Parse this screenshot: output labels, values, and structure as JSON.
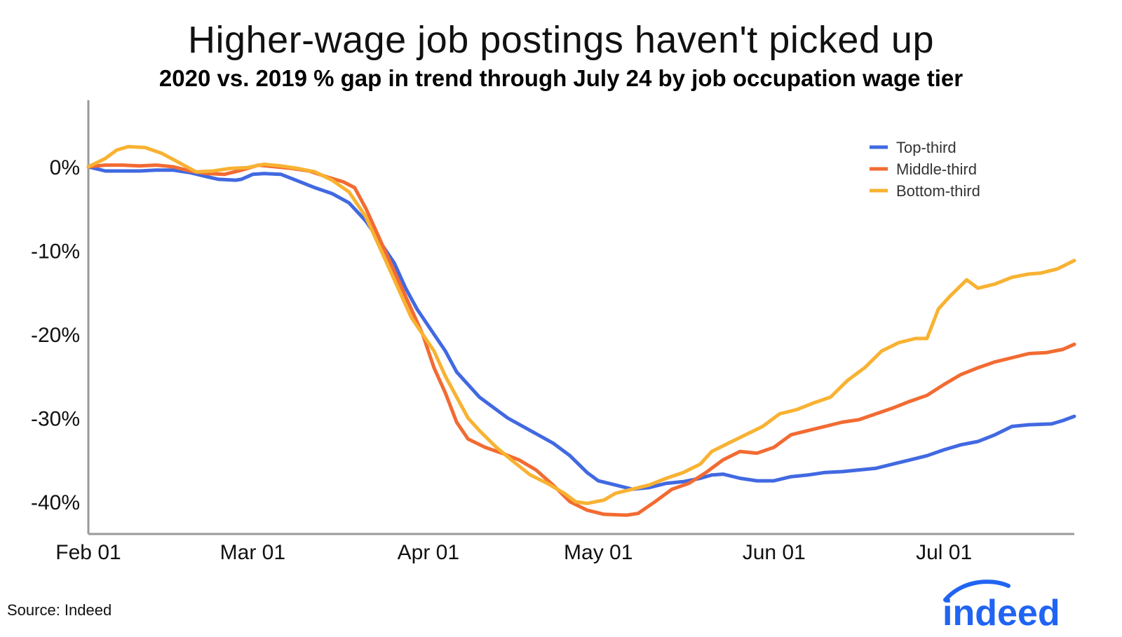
{
  "chart_data": {
    "type": "line",
    "title": "Higher-wage job postings haven't picked up",
    "subtitle": "2020 vs. 2019 % gap in trend through July 24 by job occupation wage tier",
    "xlabel": "",
    "ylabel": "",
    "x_ticks": [
      {
        "label": "Feb 01",
        "day": 0
      },
      {
        "label": "Mar 01",
        "day": 29
      },
      {
        "label": "Apr 01",
        "day": 60
      },
      {
        "label": "May 01",
        "day": 90
      },
      {
        "label": "Jun 01",
        "day": 121
      },
      {
        "label": "Jul 01",
        "day": 151
      }
    ],
    "xlim": [
      0,
      174
    ],
    "y_ticks": [
      {
        "label": "0%",
        "value": 0
      },
      {
        "label": "-10%",
        "value": -10
      },
      {
        "label": "-20%",
        "value": -20
      },
      {
        "label": "-30%",
        "value": -30
      },
      {
        "label": "-40%",
        "value": -40
      }
    ],
    "ylim": [
      -44,
      8
    ],
    "legend_position": "top-right",
    "series": [
      {
        "name": "Top-third",
        "color": "#4169e1",
        "points": [
          [
            0,
            0
          ],
          [
            3,
            -0.5
          ],
          [
            6,
            -0.5
          ],
          [
            9,
            -0.5
          ],
          [
            12,
            -0.4
          ],
          [
            15,
            -0.4
          ],
          [
            18,
            -0.7
          ],
          [
            21,
            -1.2
          ],
          [
            23,
            -1.5
          ],
          [
            26,
            -1.6
          ],
          [
            27,
            -1.5
          ],
          [
            29,
            -0.9
          ],
          [
            31,
            -0.8
          ],
          [
            34,
            -0.9
          ],
          [
            37,
            -1.7
          ],
          [
            40,
            -2.5
          ],
          [
            43,
            -3.2
          ],
          [
            46,
            -4.3
          ],
          [
            49,
            -6.5
          ],
          [
            52,
            -9.5
          ],
          [
            54,
            -11.5
          ],
          [
            56,
            -14.5
          ],
          [
            58,
            -17
          ],
          [
            61,
            -20
          ],
          [
            63,
            -22
          ],
          [
            65,
            -24.5
          ],
          [
            67,
            -26
          ],
          [
            69,
            -27.5
          ],
          [
            71,
            -28.5
          ],
          [
            74,
            -30
          ],
          [
            78,
            -31.5
          ],
          [
            82,
            -33
          ],
          [
            85,
            -34.5
          ],
          [
            88,
            -36.5
          ],
          [
            90,
            -37.5
          ],
          [
            93,
            -38
          ],
          [
            96,
            -38.5
          ],
          [
            99,
            -38.3
          ],
          [
            102,
            -37.8
          ],
          [
            105,
            -37.6
          ],
          [
            108,
            -37.2
          ],
          [
            110,
            -36.8
          ],
          [
            112,
            -36.7
          ],
          [
            115,
            -37.2
          ],
          [
            118,
            -37.5
          ],
          [
            121,
            -37.5
          ],
          [
            124,
            -37
          ],
          [
            127,
            -36.8
          ],
          [
            130,
            -36.5
          ],
          [
            133,
            -36.4
          ],
          [
            136,
            -36.2
          ],
          [
            139,
            -36
          ],
          [
            142,
            -35.5
          ],
          [
            145,
            -35
          ],
          [
            148,
            -34.5
          ],
          [
            151,
            -33.8
          ],
          [
            154,
            -33.2
          ],
          [
            157,
            -32.8
          ],
          [
            160,
            -32
          ],
          [
            163,
            -31
          ],
          [
            166,
            -30.8
          ],
          [
            170,
            -30.7
          ],
          [
            172,
            -30.3
          ],
          [
            174,
            -29.8
          ]
        ]
      },
      {
        "name": "Middle-third",
        "color": "#f26b32",
        "points": [
          [
            0,
            0
          ],
          [
            3,
            0.2
          ],
          [
            6,
            0.2
          ],
          [
            9,
            0.1
          ],
          [
            12,
            0.2
          ],
          [
            15,
            0
          ],
          [
            18,
            -0.5
          ],
          [
            21,
            -0.8
          ],
          [
            24,
            -0.9
          ],
          [
            27,
            -0.4
          ],
          [
            30,
            0.2
          ],
          [
            33,
            0
          ],
          [
            36,
            -0.2
          ],
          [
            39,
            -0.5
          ],
          [
            42,
            -1.2
          ],
          [
            45,
            -1.8
          ],
          [
            47,
            -2.5
          ],
          [
            49,
            -5
          ],
          [
            51,
            -8
          ],
          [
            53,
            -11
          ],
          [
            55,
            -14
          ],
          [
            57,
            -17
          ],
          [
            59,
            -20
          ],
          [
            61,
            -24
          ],
          [
            63,
            -27
          ],
          [
            65,
            -30.5
          ],
          [
            67,
            -32.5
          ],
          [
            70,
            -33.5
          ],
          [
            73,
            -34.2
          ],
          [
            76,
            -35
          ],
          [
            79,
            -36.2
          ],
          [
            82,
            -38
          ],
          [
            85,
            -40
          ],
          [
            88,
            -41
          ],
          [
            91,
            -41.5
          ],
          [
            95,
            -41.6
          ],
          [
            97,
            -41.4
          ],
          [
            100,
            -40
          ],
          [
            103,
            -38.5
          ],
          [
            106,
            -37.8
          ],
          [
            109,
            -36.5
          ],
          [
            112,
            -35
          ],
          [
            115,
            -34
          ],
          [
            118,
            -34.2
          ],
          [
            121,
            -33.5
          ],
          [
            124,
            -32
          ],
          [
            127,
            -31.5
          ],
          [
            130,
            -31
          ],
          [
            133,
            -30.5
          ],
          [
            136,
            -30.2
          ],
          [
            139,
            -29.5
          ],
          [
            142,
            -28.8
          ],
          [
            145,
            -28
          ],
          [
            148,
            -27.3
          ],
          [
            151,
            -26
          ],
          [
            154,
            -24.8
          ],
          [
            157,
            -24
          ],
          [
            160,
            -23.3
          ],
          [
            163,
            -22.8
          ],
          [
            166,
            -22.3
          ],
          [
            169,
            -22.2
          ],
          [
            172,
            -21.8
          ],
          [
            174,
            -21.2
          ]
        ]
      },
      {
        "name": "Bottom-third",
        "color": "#f8b232",
        "points": [
          [
            0,
            0
          ],
          [
            3,
            1
          ],
          [
            5,
            2
          ],
          [
            7,
            2.4
          ],
          [
            10,
            2.3
          ],
          [
            13,
            1.6
          ],
          [
            16,
            0.5
          ],
          [
            19,
            -0.6
          ],
          [
            22,
            -0.5
          ],
          [
            25,
            -0.2
          ],
          [
            28,
            -0.1
          ],
          [
            31,
            0.3
          ],
          [
            34,
            0.1
          ],
          [
            37,
            -0.2
          ],
          [
            40,
            -0.6
          ],
          [
            43,
            -1.6
          ],
          [
            46,
            -3
          ],
          [
            49,
            -6
          ],
          [
            51,
            -9
          ],
          [
            53,
            -12
          ],
          [
            55,
            -15
          ],
          [
            57,
            -18
          ],
          [
            59,
            -20
          ],
          [
            61,
            -22
          ],
          [
            63,
            -25
          ],
          [
            65,
            -27.5
          ],
          [
            67,
            -30
          ],
          [
            69,
            -31.5
          ],
          [
            72,
            -33.5
          ],
          [
            75,
            -35.2
          ],
          [
            78,
            -36.8
          ],
          [
            81,
            -37.8
          ],
          [
            84,
            -39
          ],
          [
            86,
            -40
          ],
          [
            88,
            -40.2
          ],
          [
            91,
            -39.8
          ],
          [
            93,
            -39
          ],
          [
            96,
            -38.5
          ],
          [
            99,
            -38
          ],
          [
            102,
            -37.2
          ],
          [
            105,
            -36.5
          ],
          [
            108,
            -35.5
          ],
          [
            110,
            -34
          ],
          [
            113,
            -33
          ],
          [
            116,
            -32
          ],
          [
            119,
            -31
          ],
          [
            122,
            -29.5
          ],
          [
            125,
            -29
          ],
          [
            128,
            -28.2
          ],
          [
            131,
            -27.5
          ],
          [
            134,
            -25.5
          ],
          [
            137,
            -24
          ],
          [
            140,
            -22
          ],
          [
            143,
            -21
          ],
          [
            146,
            -20.5
          ],
          [
            148,
            -20.5
          ],
          [
            150,
            -17
          ],
          [
            152,
            -15.5
          ],
          [
            155,
            -13.5
          ],
          [
            157,
            -14.5
          ],
          [
            160,
            -14
          ],
          [
            163,
            -13.2
          ],
          [
            166,
            -12.8
          ],
          [
            168,
            -12.7
          ],
          [
            171,
            -12.2
          ],
          [
            174,
            -11.2
          ]
        ]
      }
    ]
  },
  "footer": {
    "source": "Source: Indeed",
    "logo_text": "indeed"
  }
}
